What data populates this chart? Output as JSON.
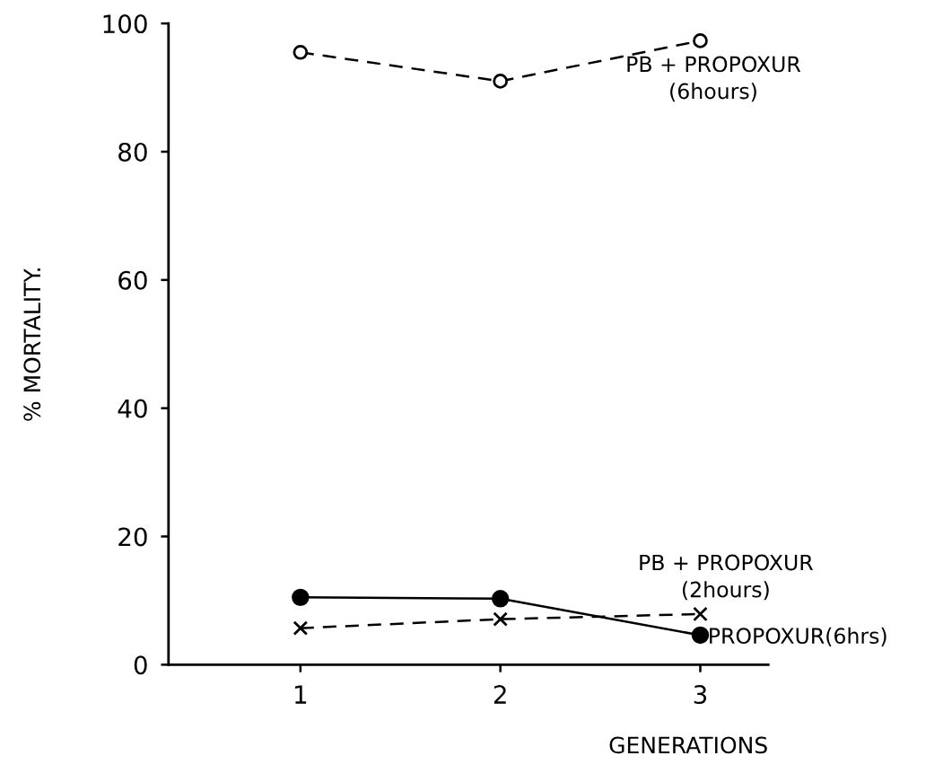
{
  "chart_data": {
    "type": "line",
    "xlabel": "GENERATIONS",
    "ylabel": "% MORTALITY.",
    "x": [
      1,
      2,
      3
    ],
    "xlim": [
      0.34,
      3.34
    ],
    "xticks": [
      1,
      2,
      3
    ],
    "ylim": [
      0,
      100
    ],
    "yticks": [
      0,
      20,
      40,
      60,
      80,
      100
    ],
    "grid": false,
    "legend": false,
    "series": [
      {
        "name": "PB + PROPOXUR\n(6hours)",
        "color": "#000000",
        "values": [
          95.5,
          91,
          97.3
        ],
        "line_style": "dashed",
        "marker": "circle"
      },
      {
        "name": "PB + PROPOXUR\n(2hours)",
        "color": "#000000",
        "values": [
          5.7,
          7.1,
          7.9
        ],
        "line_style": "dashed",
        "marker": "cross"
      },
      {
        "name": "PROPOXUR(6hrs)",
        "color": "#000000",
        "values": [
          10.5,
          10.3,
          4.6
        ],
        "line_style": "solid",
        "marker": "circle"
      }
    ]
  }
}
